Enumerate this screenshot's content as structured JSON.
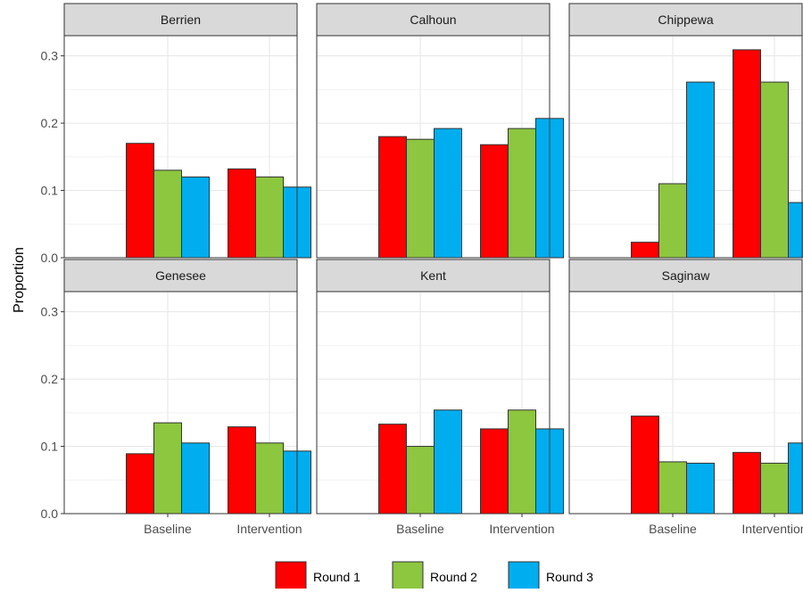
{
  "chart_data": {
    "type": "bar",
    "ylabel": "Proportion",
    "xlabel": "",
    "ylim": [
      0,
      0.33
    ],
    "yticks": [
      0.0,
      0.1,
      0.2,
      0.3
    ],
    "ytick_labels": [
      "0.0",
      "0.1",
      "0.2",
      "0.3"
    ],
    "categories": [
      "Baseline",
      "Intervention"
    ],
    "legend": {
      "position": "bottom",
      "entries": [
        {
          "name": "Round 1",
          "color": "#ff0000"
        },
        {
          "name": "Round 2",
          "color": "#8dc63f"
        },
        {
          "name": "Round 3",
          "color": "#00aeef"
        }
      ]
    },
    "grid": true,
    "facet_layout": {
      "rows": 2,
      "cols": 3
    },
    "facets": [
      {
        "name": "Berrien",
        "series": [
          {
            "name": "Round 1",
            "values": [
              0.17,
              0.132
            ]
          },
          {
            "name": "Round 2",
            "values": [
              0.13,
              0.12
            ]
          },
          {
            "name": "Round 3",
            "values": [
              0.12,
              0.105
            ]
          }
        ]
      },
      {
        "name": "Calhoun",
        "series": [
          {
            "name": "Round 1",
            "values": [
              0.18,
              0.168
            ]
          },
          {
            "name": "Round 2",
            "values": [
              0.176,
              0.192
            ]
          },
          {
            "name": "Round 3",
            "values": [
              0.192,
              0.207
            ]
          }
        ]
      },
      {
        "name": "Chippewa",
        "series": [
          {
            "name": "Round 1",
            "values": [
              0.023,
              0.309
            ]
          },
          {
            "name": "Round 2",
            "values": [
              0.11,
              0.261
            ]
          },
          {
            "name": "Round 3",
            "values": [
              0.261,
              0.082
            ]
          }
        ]
      },
      {
        "name": "Genesee",
        "series": [
          {
            "name": "Round 1",
            "values": [
              0.089,
              0.129
            ]
          },
          {
            "name": "Round 2",
            "values": [
              0.135,
              0.105
            ]
          },
          {
            "name": "Round 3",
            "values": [
              0.105,
              0.093
            ]
          }
        ]
      },
      {
        "name": "Kent",
        "series": [
          {
            "name": "Round 1",
            "values": [
              0.133,
              0.126
            ]
          },
          {
            "name": "Round 2",
            "values": [
              0.1,
              0.154
            ]
          },
          {
            "name": "Round 3",
            "values": [
              0.154,
              0.126
            ]
          }
        ]
      },
      {
        "name": "Saginaw",
        "series": [
          {
            "name": "Round 1",
            "values": [
              0.145,
              0.091
            ]
          },
          {
            "name": "Round 2",
            "values": [
              0.077,
              0.075
            ]
          },
          {
            "name": "Round 3",
            "values": [
              0.075,
              0.105
            ]
          }
        ]
      }
    ]
  }
}
